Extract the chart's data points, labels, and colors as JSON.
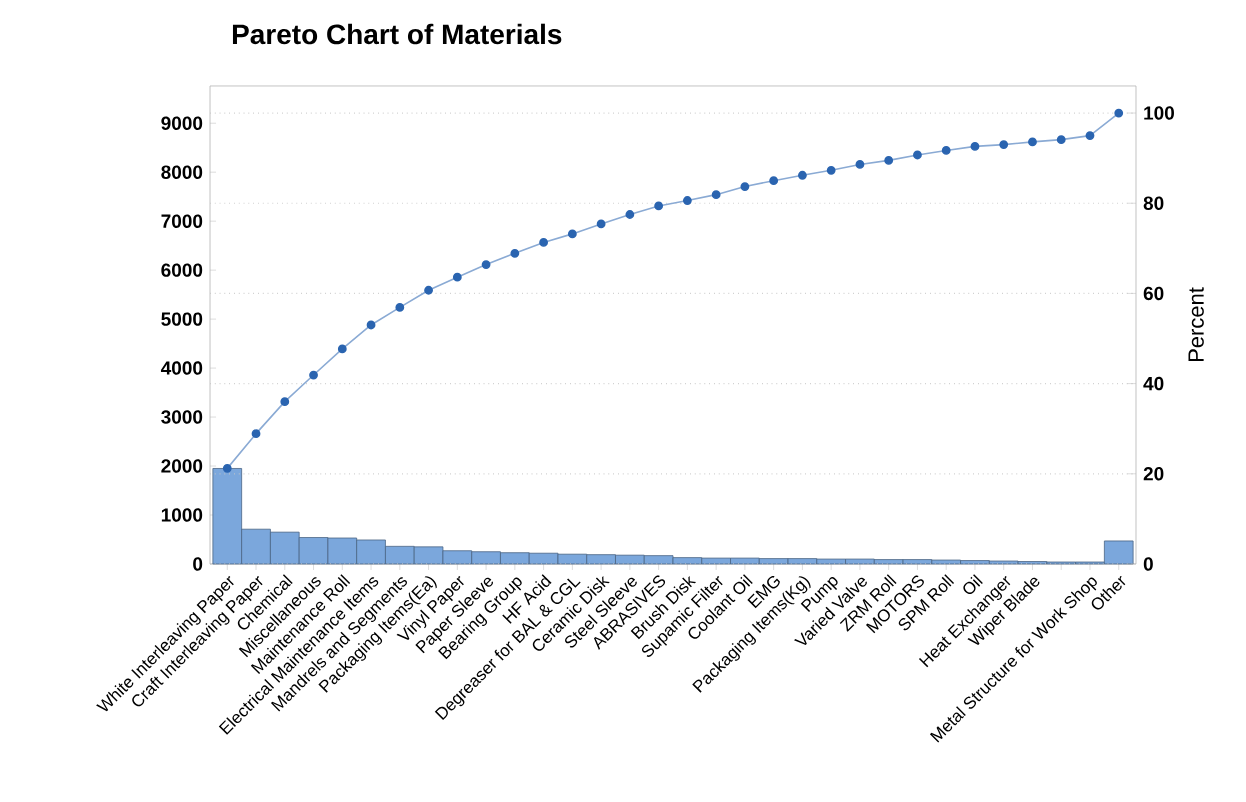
{
  "chart_data": {
    "type": "bar",
    "title": "Pareto Chart of Materials",
    "y2label": "Percent",
    "categories": [
      "White Interleaving Paper",
      "Craft Interleaving Paper",
      "Chemical",
      "Miscellaneous",
      "Maintenance Roll",
      "Electrical Maintenance Items",
      "Mandrels and Segments",
      "Packaging Items(Ea)",
      "Vinyl Paper",
      "Paper Sleeve",
      "Bearing Group",
      "HF Acid",
      "Degreaser for BAL & CGL",
      "Ceramic Disk",
      "Steel Sleeve",
      "ABRASIVES",
      "Brush Disk",
      "Supamic Filter",
      "Coolant Oil",
      "EMG",
      "Packaging Items(Kg)",
      "Pump",
      "Varied Valve",
      "ZRM Roll",
      "MOTORS",
      "SPM Roll",
      "Oil",
      "Heat Exchanger",
      "Wiper Blade",
      null,
      "Metal Structure for Work Shop",
      "Other"
    ],
    "series": [
      {
        "color": "#7ba7dc",
        "values": [
          1950,
          710,
          650,
          540,
          530,
          490,
          360,
          350,
          270,
          250,
          230,
          220,
          200,
          190,
          180,
          170,
          130,
          120,
          120,
          110,
          110,
          100,
          100,
          90,
          90,
          80,
          70,
          60,
          50,
          40,
          40,
          470
        ]
      },
      {
        "type": "line",
        "axis": "y2",
        "color": "#2a64b0",
        "values": [
          21.2,
          28.9,
          36.0,
          41.9,
          47.7,
          53.0,
          56.9,
          60.7,
          63.6,
          66.4,
          68.9,
          71.3,
          73.2,
          75.4,
          77.5,
          79.4,
          80.6,
          81.9,
          83.7,
          85.0,
          86.2,
          87.3,
          88.6,
          89.5,
          90.7,
          91.7,
          92.6,
          93.0,
          93.6,
          94.1,
          95.0,
          100
        ]
      }
    ],
    "ylim": [
      0,
      9760
    ],
    "yticks": [
      0,
      1000,
      2000,
      3000,
      4000,
      5000,
      6000,
      7000,
      8000,
      9000
    ],
    "y2lim": [
      0,
      106
    ],
    "y2ticks": [
      0,
      20,
      40,
      60,
      80,
      100
    ],
    "grid": "y",
    "marker": "circle"
  }
}
